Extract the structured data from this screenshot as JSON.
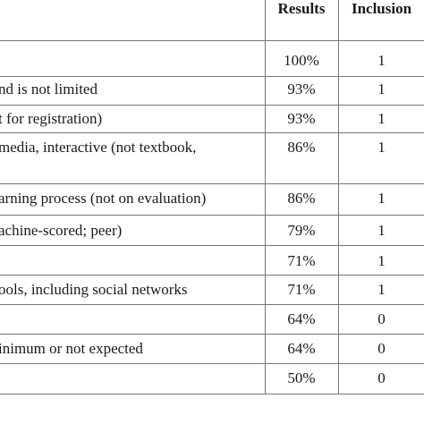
{
  "table": {
    "header": {
      "results": "Results",
      "inclusion": "Inclusion"
    },
    "rows": [
      {
        "result": "100%",
        "inclusion": "1"
      },
      {
        "label": "nd is not limited",
        "result": "93%",
        "inclusion": "1"
      },
      {
        "label": "t for registration)",
        "result": "93%",
        "inclusion": "1"
      },
      {
        "label": "media, interactive (not textbook,",
        "result": "86%",
        "inclusion": "1"
      },
      {
        "label": "arning process (not on evaluation)",
        "result": "86%",
        "inclusion": "1"
      },
      {
        "label": "achine-scored; peer)",
        "result": "79%",
        "inclusion": "1"
      },
      {
        "result": "71%",
        "inclusion": "1"
      },
      {
        "label": "ools, including social networks",
        "result": "71%",
        "inclusion": "1"
      },
      {
        "result": "64%",
        "inclusion": "0"
      },
      {
        "label": "inimum or not expected",
        "result": "64%",
        "inclusion": "0"
      },
      {
        "result": "50%",
        "inclusion": "0"
      }
    ]
  }
}
